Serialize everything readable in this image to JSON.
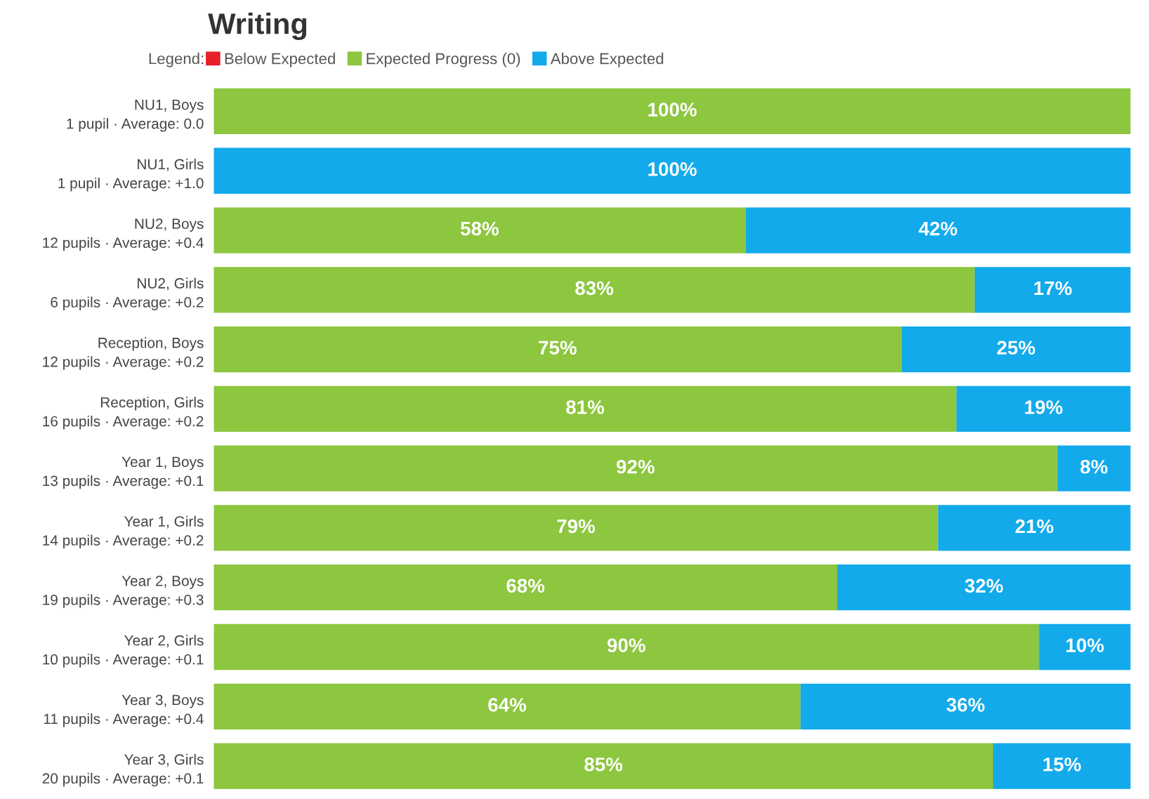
{
  "chart_data": {
    "type": "bar",
    "orientation": "horizontal",
    "stacked": true,
    "title": "Writing",
    "legend_title": "Legend:",
    "legend": "top",
    "categories": [
      "NU1, Boys\n1 pupil · Average: 0.0",
      "NU1, Girls\n1 pupil · Average: +1.0",
      "NU2, Boys\n12 pupils · Average: +0.4",
      "NU2, Girls\n6 pupils · Average: +0.2",
      "Reception, Boys\n12 pupils · Average: +0.2",
      "Reception, Girls\n16 pupils · Average: +0.2",
      "Year 1, Boys\n13 pupils · Average: +0.1",
      "Year 1, Girls\n14 pupils · Average: +0.2",
      "Year 2, Boys\n19 pupils · Average: +0.3",
      "Year 2, Girls\n10 pupils · Average: +0.1",
      "Year 3, Boys\n11 pupils · Average: +0.4",
      "Year 3, Girls\n20 pupils · Average: +0.1"
    ],
    "xlim": [
      0,
      100
    ],
    "tick_labels": "y",
    "series": [
      {
        "name": "Below Expected",
        "color": "#e8202a",
        "values": [
          null,
          null,
          null,
          null,
          null,
          null,
          null,
          null,
          null,
          null,
          null,
          null
        ],
        "value_labels": [
          null,
          null,
          null,
          null,
          null,
          null,
          null,
          null,
          null,
          null,
          null,
          null
        ]
      },
      {
        "name": "Expected Progress (0)",
        "color": "#8dc63f",
        "values": [
          100,
          null,
          58,
          83,
          75,
          81,
          92,
          79,
          68,
          90,
          64,
          85
        ],
        "value_labels": [
          "100%",
          null,
          "58%",
          "83%",
          "75%",
          "81%",
          "92%",
          "79%",
          "68%",
          "90%",
          "64%",
          "85%"
        ]
      },
      {
        "name": "Above Expected",
        "color": "#12aaeb",
        "values": [
          null,
          100,
          42,
          17,
          25,
          19,
          8,
          21,
          32,
          10,
          36,
          15
        ],
        "value_labels": [
          null,
          "100%",
          "42%",
          "17%",
          "25%",
          "19%",
          "8%",
          "21%",
          "32%",
          "10%",
          "36%",
          "15%"
        ]
      }
    ]
  }
}
